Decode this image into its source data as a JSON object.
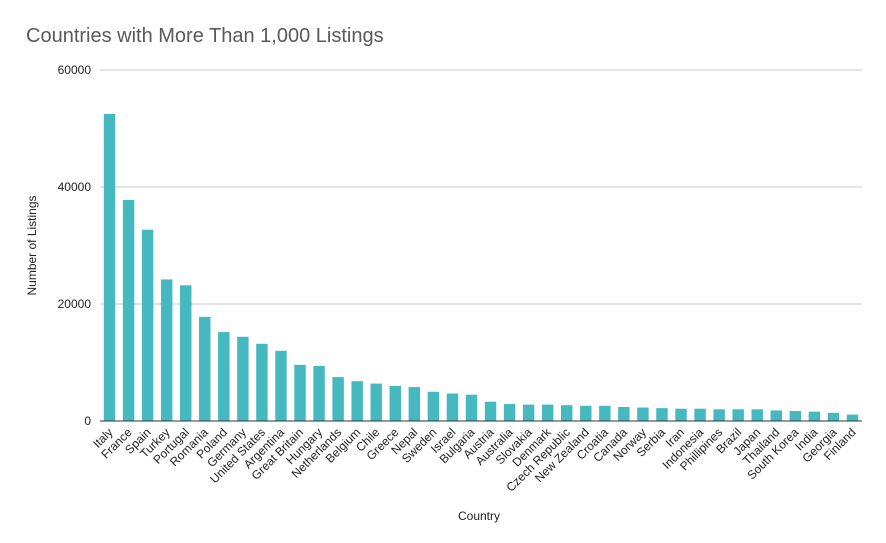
{
  "chart_data": {
    "type": "bar",
    "title": "Countries with More Than 1,000 Listings",
    "xlabel": "Country",
    "ylabel": "Number of Listings",
    "ylim": [
      0,
      60000
    ],
    "yticks": [
      "0",
      "20000",
      "40000",
      "60000"
    ],
    "grid": true,
    "legend": "none",
    "bar_color": "#46b8c0",
    "categories": [
      "Italy",
      "France",
      "Spain",
      "Turkey",
      "Portugal",
      "Romania",
      "Poland",
      "Germany",
      "United States",
      "Argentina",
      "Great Britain",
      "Hungary",
      "Netherlands",
      "Belgium",
      "Chile",
      "Greece",
      "Nepal",
      "Sweden",
      "Israel",
      "Bulgaria",
      "Austria",
      "Australia",
      "Slovakia",
      "Denmark",
      "Czech Republic",
      "New Zealand",
      "Croatia",
      "Canada",
      "Norway",
      "Serbia",
      "Iran",
      "Indonesia",
      "Phillipines",
      "Brazil",
      "Japan",
      "Thailand",
      "South Korea",
      "India",
      "Georgia",
      "Finland"
    ],
    "values": [
      52500,
      37800,
      32700,
      24200,
      23200,
      17800,
      15200,
      14400,
      13200,
      12000,
      9600,
      9400,
      7500,
      6800,
      6400,
      6000,
      5800,
      5000,
      4700,
      4500,
      3300,
      2900,
      2800,
      2800,
      2700,
      2600,
      2600,
      2400,
      2300,
      2200,
      2100,
      2100,
      2000,
      2000,
      2000,
      1800,
      1700,
      1600,
      1400,
      1100
    ]
  }
}
